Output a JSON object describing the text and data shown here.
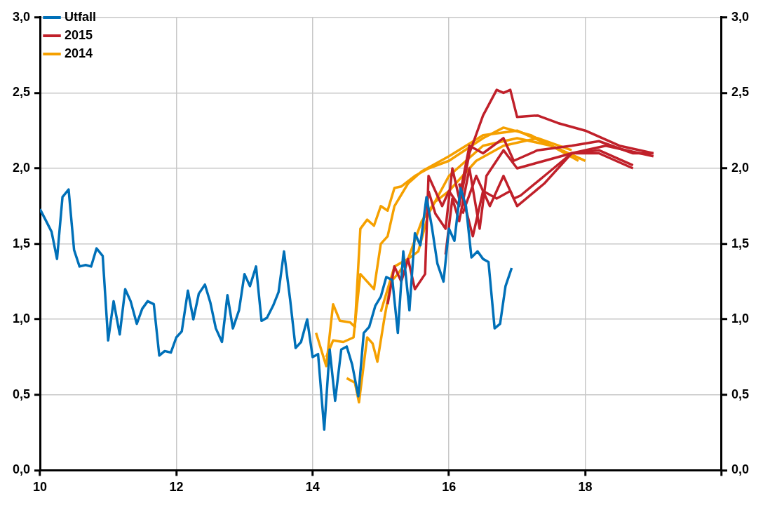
{
  "chart_data": {
    "type": "line",
    "xlim": [
      10,
      20
    ],
    "xticks": [
      10,
      12,
      14,
      16,
      18,
      {
        "value": 20,
        "label": null
      }
    ],
    "ylim": [
      0,
      3
    ],
    "yticks": [
      {
        "value": 0,
        "label": "0,0"
      },
      {
        "value": 0.5,
        "label": "0,5"
      },
      {
        "value": 1,
        "label": "1,0"
      },
      {
        "value": 1.5,
        "label": "1,5"
      },
      {
        "value": 2,
        "label": "2,0"
      },
      {
        "value": 2.5,
        "label": "2,5"
      },
      {
        "value": 3,
        "label": "3,0"
      }
    ],
    "y2lim": [
      0,
      3
    ],
    "y2ticks": [
      {
        "value": 0,
        "label": "0,0"
      },
      {
        "value": 0.5,
        "label": "0,5"
      },
      {
        "value": 1,
        "label": "1,0"
      },
      {
        "value": 1.5,
        "label": "1,5"
      },
      {
        "value": 2,
        "label": "2,0"
      },
      {
        "value": 2.5,
        "label": "2,5"
      },
      {
        "value": 3,
        "label": "3,0"
      }
    ],
    "grid": true,
    "legend": "top left",
    "series": [
      {
        "name": "Utfall",
        "color": "#0070b8",
        "x": [
          10.0,
          10.08,
          10.17,
          10.25,
          10.33,
          10.42,
          10.5,
          10.58,
          10.67,
          10.75,
          10.83,
          10.92,
          11.0,
          11.08,
          11.17,
          11.25,
          11.33,
          11.42,
          11.5,
          11.58,
          11.67,
          11.75,
          11.83,
          11.92,
          12.0,
          12.08,
          12.17,
          12.25,
          12.33,
          12.42,
          12.5,
          12.58,
          12.67,
          12.75,
          12.83,
          12.92,
          13.0,
          13.08,
          13.17,
          13.25,
          13.33,
          13.42,
          13.5,
          13.58,
          13.67,
          13.75,
          13.83,
          13.92,
          14.0,
          14.08,
          14.17,
          14.25,
          14.33,
          14.42,
          14.5,
          14.58,
          14.67,
          14.75,
          14.83,
          14.92,
          15.0,
          15.08,
          15.17,
          15.25,
          15.33,
          15.42,
          15.5,
          15.58,
          15.67,
          15.75,
          15.83,
          15.92,
          16.0,
          16.08,
          16.17,
          16.25,
          16.33,
          16.42,
          16.5,
          16.58,
          16.67,
          16.75,
          16.83,
          16.92
        ],
        "values": [
          1.73,
          1.66,
          1.58,
          1.4,
          1.81,
          1.86,
          1.46,
          1.35,
          1.36,
          1.35,
          1.47,
          1.42,
          0.86,
          1.12,
          0.9,
          1.2,
          1.12,
          0.97,
          1.07,
          1.12,
          1.1,
          0.76,
          0.79,
          0.78,
          0.88,
          0.92,
          1.19,
          1.0,
          1.17,
          1.23,
          1.11,
          0.94,
          0.85,
          1.16,
          0.94,
          1.06,
          1.3,
          1.22,
          1.35,
          0.99,
          1.01,
          1.09,
          1.18,
          1.45,
          1.13,
          0.81,
          0.85,
          1.0,
          0.75,
          0.77,
          0.27,
          0.8,
          0.46,
          0.8,
          0.82,
          0.7,
          0.49,
          0.91,
          0.95,
          1.09,
          1.15,
          1.28,
          1.26,
          0.91,
          1.45,
          1.06,
          1.57,
          1.49,
          1.81,
          1.61,
          1.37,
          1.25,
          1.6,
          1.52,
          1.87,
          1.75,
          1.41,
          1.45,
          1.4,
          1.38,
          0.94,
          0.97,
          1.22,
          1.34
        ]
      },
      {
        "name": "2015",
        "color": "#c0202a",
        "x": [
          15.1,
          15.2,
          15.3,
          15.4,
          15.5,
          15.65,
          15.7,
          15.9,
          16.0,
          16.15,
          16.3,
          16.5,
          16.7,
          16.8,
          16.9,
          17.0,
          17.3,
          17.6,
          18.0,
          18.5,
          19.0
        ],
        "values": [
          1.1,
          1.35,
          1.25,
          1.4,
          1.2,
          1.3,
          1.95,
          1.75,
          1.85,
          1.75,
          2.1,
          2.35,
          2.52,
          2.5,
          2.52,
          2.34,
          2.35,
          2.3,
          2.25,
          2.15,
          2.1
        ]
      },
      {
        "color": "#c0202a",
        "x": [
          15.7,
          15.8,
          15.95,
          16.05,
          16.15,
          16.3,
          16.5,
          16.8,
          16.95,
          17.3,
          17.8,
          18.2,
          18.7,
          19.0
        ],
        "values": [
          1.85,
          1.7,
          1.6,
          2.0,
          1.8,
          2.15,
          2.1,
          2.2,
          2.05,
          2.12,
          2.15,
          2.18,
          2.1,
          2.1
        ]
      },
      {
        "color": "#c0202a",
        "x": [
          15.95,
          16.05,
          16.15,
          16.3,
          16.45,
          16.55,
          16.8,
          17.0,
          17.4,
          17.8,
          18.2,
          18.7
        ],
        "values": [
          1.43,
          1.8,
          1.65,
          2.0,
          1.6,
          1.95,
          2.12,
          2.0,
          2.05,
          2.1,
          2.1,
          2.0
        ]
      },
      {
        "color": "#c0202a",
        "x": [
          16.15,
          16.35,
          16.5,
          16.7,
          16.9,
          17.0,
          17.4,
          17.8,
          18.2,
          18.7
        ],
        "values": [
          1.9,
          1.55,
          1.85,
          1.8,
          1.85,
          1.75,
          1.9,
          2.1,
          2.12,
          2.02
        ]
      },
      {
        "color": "#c0202a",
        "x": [
          16.2,
          16.4,
          16.6,
          16.8,
          16.95,
          17.05,
          17.4,
          17.8,
          18.3,
          19.0
        ],
        "values": [
          1.7,
          1.95,
          1.75,
          1.95,
          1.8,
          1.82,
          1.95,
          2.1,
          2.15,
          2.08
        ]
      },
      {
        "name": "2014",
        "color": "#f5a000",
        "x": [
          14.05,
          14.2,
          14.3,
          14.4,
          14.55,
          14.62,
          14.7,
          14.8,
          14.9,
          15.0,
          15.1,
          15.2,
          15.3,
          15.5,
          15.7,
          16.0,
          16.5,
          16.8,
          17.2,
          17.5,
          17.9
        ],
        "values": [
          0.91,
          0.69,
          1.1,
          0.99,
          0.98,
          0.95,
          1.6,
          1.66,
          1.62,
          1.75,
          1.72,
          1.87,
          1.88,
          1.95,
          2.0,
          2.05,
          2.2,
          2.27,
          2.22,
          2.15,
          2.05
        ]
      },
      {
        "color": "#f5a000",
        "x": [
          14.2,
          14.3,
          14.45,
          14.6,
          14.7,
          14.8,
          14.9,
          15.0,
          15.1,
          15.2,
          15.4,
          15.6,
          16.0,
          16.5,
          17.0,
          17.5,
          18.0
        ],
        "values": [
          0.75,
          0.86,
          0.85,
          0.88,
          1.3,
          1.25,
          1.2,
          1.5,
          1.55,
          1.75,
          1.9,
          1.98,
          2.08,
          2.22,
          2.25,
          2.15,
          2.05
        ]
      },
      {
        "color": "#f5a000",
        "x": [
          14.5,
          14.62,
          14.68,
          14.8,
          14.88,
          14.95,
          15.05,
          15.15,
          15.25,
          15.4,
          15.55,
          15.7,
          16.0,
          16.5,
          17.0,
          17.5,
          18.0
        ],
        "values": [
          0.61,
          0.58,
          0.45,
          0.88,
          0.84,
          0.72,
          1.0,
          1.25,
          1.3,
          1.4,
          1.45,
          1.7,
          1.95,
          2.15,
          2.2,
          2.15,
          2.05
        ]
      },
      {
        "color": "#f5a000",
        "x": [
          15.0,
          15.2,
          15.4,
          15.6,
          15.8,
          16.0,
          16.4,
          16.8,
          17.3,
          17.8
        ],
        "values": [
          1.05,
          1.35,
          1.4,
          1.65,
          1.78,
          1.85,
          2.05,
          2.15,
          2.2,
          2.12
        ]
      }
    ]
  }
}
